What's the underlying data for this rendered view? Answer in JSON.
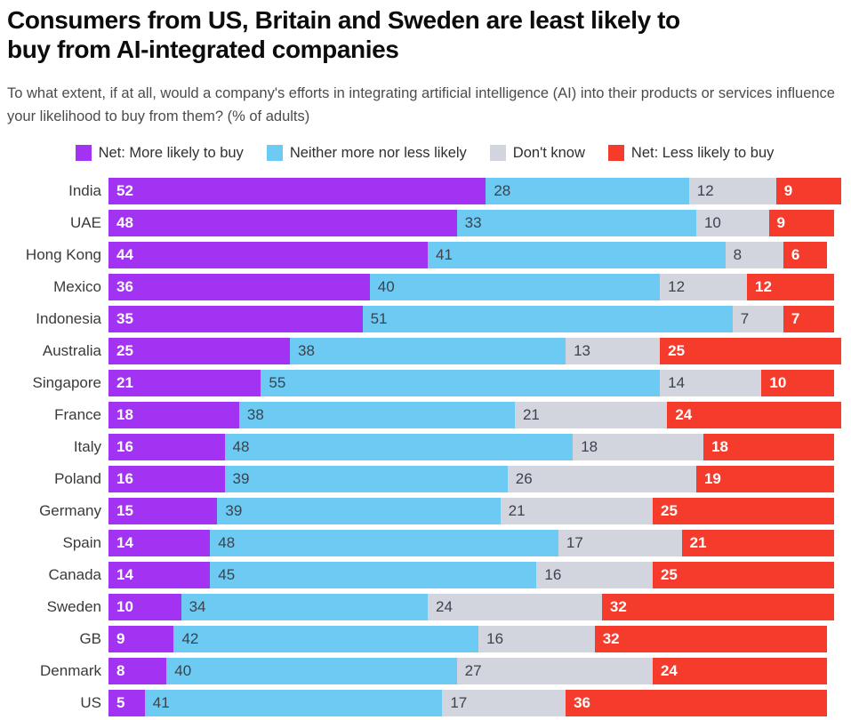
{
  "header": {
    "title_line1": "Consumers from US, Britain and Sweden are least likely to",
    "title_line2": "buy from AI-integrated companies",
    "subtitle": "To what extent, if at all, would a company's efforts in integrating artificial intelligence (AI) into their products or services influence your likelihood to buy from them? (% of adults)"
  },
  "colors": {
    "more_likely": "#A233F3",
    "neither": "#6CCAF3",
    "dont_know": "#D2D5DD",
    "less_likely": "#F53B2C",
    "value_label_dark": "#3C434C",
    "value_label_light": "#FFFFFF",
    "title_text": "#0C0C0C",
    "subtitle_text": "#4B4B4B",
    "country_label_text": "#3A3A3A"
  },
  "chart_data": {
    "type": "bar",
    "orientation": "horizontal",
    "stacked": true,
    "unit": "% of adults",
    "xlim": [
      0,
      100
    ],
    "grid": false,
    "legend_position": "top-center",
    "value_labels": "inside-left",
    "categories": [
      "India",
      "UAE",
      "Hong Kong",
      "Mexico",
      "Indonesia",
      "Australia",
      "Singapore",
      "France",
      "Italy",
      "Poland",
      "Germany",
      "Spain",
      "Canada",
      "Sweden",
      "GB",
      "Denmark",
      "US"
    ],
    "series": [
      {
        "key": "more-likely",
        "name": "Net: More likely to buy",
        "color": "#A233F3",
        "value_label_style": "light",
        "values": [
          52,
          48,
          44,
          36,
          35,
          25,
          21,
          18,
          16,
          16,
          15,
          14,
          14,
          10,
          9,
          8,
          5
        ]
      },
      {
        "key": "neither",
        "name": "Neither more nor less likely",
        "color": "#6CCAF3",
        "value_label_style": "dark",
        "values": [
          28,
          33,
          41,
          40,
          51,
          38,
          55,
          38,
          48,
          39,
          39,
          48,
          45,
          34,
          42,
          40,
          41
        ]
      },
      {
        "key": "dont-know",
        "name": "Don't know",
        "color": "#D2D5DD",
        "value_label_style": "dark",
        "values": [
          12,
          10,
          8,
          12,
          7,
          13,
          14,
          21,
          18,
          26,
          21,
          17,
          16,
          24,
          16,
          27,
          17
        ]
      },
      {
        "key": "less-likely",
        "name": "Net: Less likely to buy",
        "color": "#F53B2C",
        "value_label_style": "light",
        "values": [
          9,
          9,
          6,
          12,
          7,
          25,
          10,
          24,
          18,
          19,
          25,
          21,
          25,
          32,
          32,
          24,
          36
        ]
      }
    ]
  }
}
